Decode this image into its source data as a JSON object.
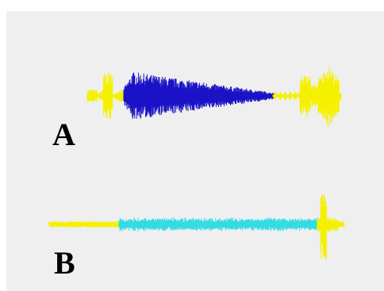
{
  "panels": [
    {
      "label": "A"
    },
    {
      "label": "B"
    }
  ],
  "colors": {
    "background": "#efefef",
    "surround_signal": "#f5f000",
    "panel_a_signal": "#1a12c6",
    "panel_b_signal": "#33dbe3"
  }
}
